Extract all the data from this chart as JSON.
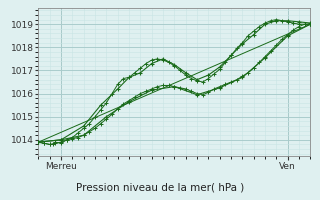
{
  "title": "Pression niveau de la mer( hPa )",
  "xlabel_left": "Merreu",
  "xlabel_right": "Ven",
  "ylim": [
    1013.3,
    1019.7
  ],
  "xlim": [
    0,
    96
  ],
  "yticks": [
    1014,
    1015,
    1016,
    1017,
    1018,
    1019
  ],
  "xtick_left": 8,
  "xtick_right": 88,
  "bg_color": "#dff0f0",
  "grid_color": "#aacccc",
  "grid_minor_color": "#c8e4e4",
  "line_color": "#1a6b1a",
  "series1_x": [
    0,
    2,
    4,
    5,
    6,
    8,
    10,
    12,
    14,
    16,
    18,
    20,
    22,
    24,
    26,
    28,
    30,
    32,
    34,
    36,
    38,
    40,
    42,
    44,
    46,
    48,
    50,
    52,
    54,
    56,
    58,
    60,
    62,
    64,
    66,
    68,
    70,
    72,
    74,
    76,
    78,
    80,
    82,
    84,
    86,
    88,
    90,
    92,
    94,
    96
  ],
  "series1_y": [
    1013.9,
    1013.85,
    1013.8,
    1013.8,
    1013.9,
    1013.85,
    1014.0,
    1014.1,
    1014.3,
    1014.5,
    1014.7,
    1015.0,
    1015.3,
    1015.6,
    1016.0,
    1016.4,
    1016.65,
    1016.7,
    1016.9,
    1017.1,
    1017.3,
    1017.45,
    1017.5,
    1017.45,
    1017.35,
    1017.2,
    1017.0,
    1016.8,
    1016.65,
    1016.55,
    1016.5,
    1016.65,
    1016.85,
    1017.05,
    1017.35,
    1017.65,
    1017.95,
    1018.2,
    1018.5,
    1018.7,
    1018.9,
    1019.05,
    1019.15,
    1019.2,
    1019.15,
    1019.1,
    1019.05,
    1019.0,
    1019.0,
    1019.0
  ],
  "series2_x": [
    0,
    2,
    4,
    6,
    8,
    10,
    12,
    14,
    16,
    18,
    20,
    22,
    24,
    26,
    28,
    30,
    32,
    34,
    36,
    38,
    40,
    42,
    44,
    46,
    48,
    50,
    52,
    54,
    56,
    58,
    60,
    62,
    64,
    66,
    68,
    70,
    72,
    74,
    76,
    78,
    80,
    82,
    84,
    86,
    88,
    90,
    92,
    94,
    96
  ],
  "series2_y": [
    1013.9,
    1013.85,
    1013.8,
    1013.85,
    1013.9,
    1014.0,
    1014.05,
    1014.1,
    1014.2,
    1014.35,
    1014.5,
    1014.7,
    1014.9,
    1015.1,
    1015.35,
    1015.55,
    1015.7,
    1015.85,
    1016.0,
    1016.1,
    1016.2,
    1016.3,
    1016.35,
    1016.35,
    1016.3,
    1016.25,
    1016.2,
    1016.1,
    1016.0,
    1015.95,
    1016.05,
    1016.2,
    1016.3,
    1016.4,
    1016.5,
    1016.6,
    1016.75,
    1016.9,
    1017.1,
    1017.35,
    1017.6,
    1017.85,
    1018.1,
    1018.35,
    1018.55,
    1018.75,
    1018.9,
    1019.0,
    1019.0
  ],
  "series3_x": [
    0,
    8,
    16,
    22,
    28,
    32,
    36,
    40,
    44,
    48,
    52,
    56,
    60,
    64,
    68,
    72,
    76,
    80,
    84,
    88,
    92,
    96
  ],
  "series3_y": [
    1013.9,
    1014.0,
    1014.6,
    1015.5,
    1016.2,
    1016.7,
    1016.9,
    1017.3,
    1017.5,
    1017.25,
    1016.9,
    1016.6,
    1016.8,
    1017.15,
    1017.65,
    1018.15,
    1018.55,
    1019.0,
    1019.15,
    1019.15,
    1019.1,
    1019.05
  ],
  "series4_x": [
    0,
    8,
    16,
    24,
    32,
    40,
    48,
    56,
    64,
    72,
    80,
    88,
    96
  ],
  "series4_y": [
    1013.9,
    1014.0,
    1014.2,
    1015.0,
    1015.65,
    1016.15,
    1016.3,
    1015.95,
    1016.25,
    1016.7,
    1017.55,
    1018.5,
    1019.0
  ],
  "series5_x": [
    0,
    96
  ],
  "series5_y": [
    1013.9,
    1019.0
  ]
}
